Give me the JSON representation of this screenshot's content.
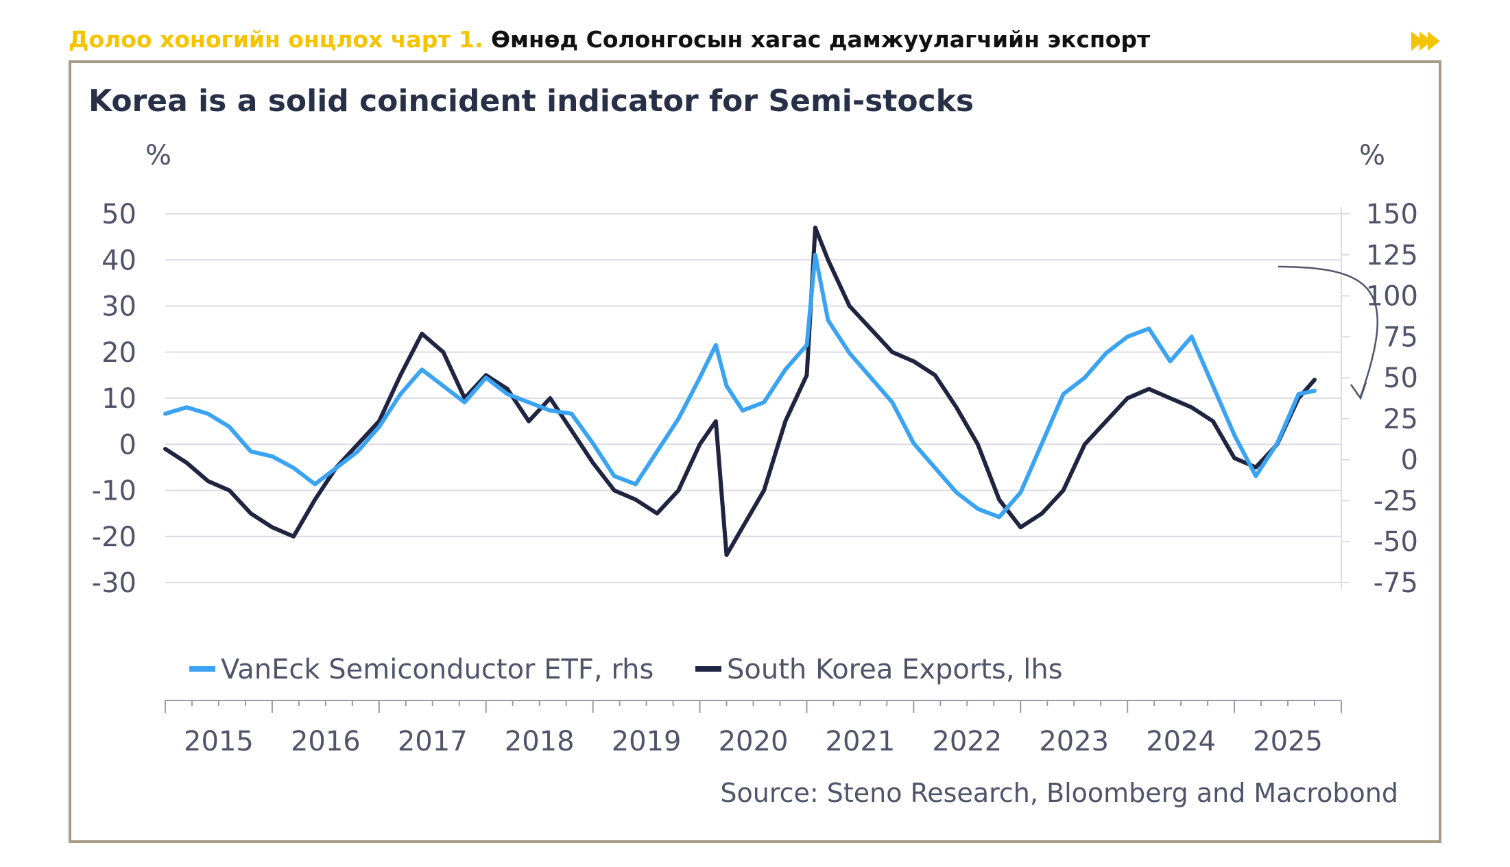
{
  "header": {
    "lead": "Долоо хоногийн онцлох чарт 1.",
    "rest": " Өмнөд Солонгосын хагас дамжуулагчийн экспорт"
  },
  "colors": {
    "accent": "#f5c400",
    "frame": "#a89a86",
    "etf": "#3aa3f2",
    "exports": "#1f2440",
    "grid": "#dcdce4",
    "text": "#50546a"
  },
  "chart_data": {
    "type": "line",
    "title": "Korea is a solid coincident indicator for Semi-stocks",
    "left_unit": "%",
    "right_unit": "%",
    "left_axis": {
      "min": -30,
      "max": 50,
      "ticks": [
        50,
        40,
        30,
        20,
        10,
        0,
        -10,
        -20,
        -30
      ]
    },
    "right_axis": {
      "min": -75,
      "max": 150,
      "ticks": [
        150,
        125,
        100,
        75,
        50,
        25,
        0,
        -25,
        -50,
        -75
      ]
    },
    "x_range": [
      2015.0,
      2026.0
    ],
    "x_ticks": [
      "2015",
      "2016",
      "2017",
      "2018",
      "2019",
      "2020",
      "2021",
      "2022",
      "2023",
      "2024",
      "2025"
    ],
    "legend_position": "bottom-left",
    "source": "Source: Steno Research, Bloomberg and Macrobond",
    "series": [
      {
        "name": "VanEck Semiconductor ETF, rhs",
        "axis": "right",
        "x": [
          2015.0,
          2015.2,
          2015.4,
          2015.6,
          2015.8,
          2016.0,
          2016.2,
          2016.4,
          2016.6,
          2016.8,
          2017.0,
          2017.2,
          2017.4,
          2017.6,
          2017.8,
          2018.0,
          2018.2,
          2018.4,
          2018.6,
          2018.8,
          2019.0,
          2019.2,
          2019.4,
          2019.6,
          2019.8,
          2020.0,
          2020.15,
          2020.25,
          2020.4,
          2020.6,
          2020.8,
          2021.0,
          2021.08,
          2021.2,
          2021.4,
          2021.6,
          2021.8,
          2022.0,
          2022.2,
          2022.4,
          2022.6,
          2022.8,
          2023.0,
          2023.2,
          2023.4,
          2023.6,
          2023.8,
          2024.0,
          2024.2,
          2024.4,
          2024.6,
          2024.8,
          2025.0,
          2025.2,
          2025.4,
          2025.6,
          2025.75
        ],
        "values": [
          28,
          32,
          28,
          20,
          5,
          2,
          -5,
          -15,
          -5,
          5,
          20,
          40,
          55,
          45,
          35,
          50,
          40,
          35,
          30,
          28,
          10,
          -10,
          -15,
          5,
          25,
          50,
          70,
          45,
          30,
          35,
          55,
          70,
          125,
          85,
          65,
          50,
          35,
          10,
          -5,
          -20,
          -30,
          -35,
          -20,
          10,
          40,
          50,
          65,
          75,
          80,
          60,
          75,
          45,
          15,
          -10,
          10,
          40,
          42
        ]
      },
      {
        "name": "South Korea Exports, lhs",
        "axis": "left",
        "x": [
          2015.0,
          2015.2,
          2015.4,
          2015.6,
          2015.8,
          2016.0,
          2016.2,
          2016.4,
          2016.6,
          2016.8,
          2017.0,
          2017.2,
          2017.4,
          2017.6,
          2017.8,
          2018.0,
          2018.2,
          2018.4,
          2018.6,
          2018.8,
          2019.0,
          2019.2,
          2019.4,
          2019.6,
          2019.8,
          2020.0,
          2020.15,
          2020.25,
          2020.4,
          2020.6,
          2020.8,
          2021.0,
          2021.08,
          2021.2,
          2021.4,
          2021.6,
          2021.8,
          2022.0,
          2022.2,
          2022.4,
          2022.6,
          2022.8,
          2023.0,
          2023.2,
          2023.4,
          2023.6,
          2023.8,
          2024.0,
          2024.2,
          2024.4,
          2024.6,
          2024.8,
          2025.0,
          2025.2,
          2025.4,
          2025.6,
          2025.75
        ],
        "values": [
          -1,
          -4,
          -8,
          -10,
          -15,
          -18,
          -20,
          -12,
          -5,
          0,
          5,
          15,
          24,
          20,
          10,
          15,
          12,
          5,
          10,
          3,
          -4,
          -10,
          -12,
          -15,
          -10,
          0,
          5,
          -24,
          -18,
          -10,
          5,
          15,
          47,
          40,
          30,
          25,
          20,
          18,
          15,
          8,
          0,
          -12,
          -18,
          -15,
          -10,
          0,
          5,
          10,
          12,
          10,
          8,
          5,
          -3,
          -5,
          0,
          10,
          14
        ]
      }
    ]
  }
}
